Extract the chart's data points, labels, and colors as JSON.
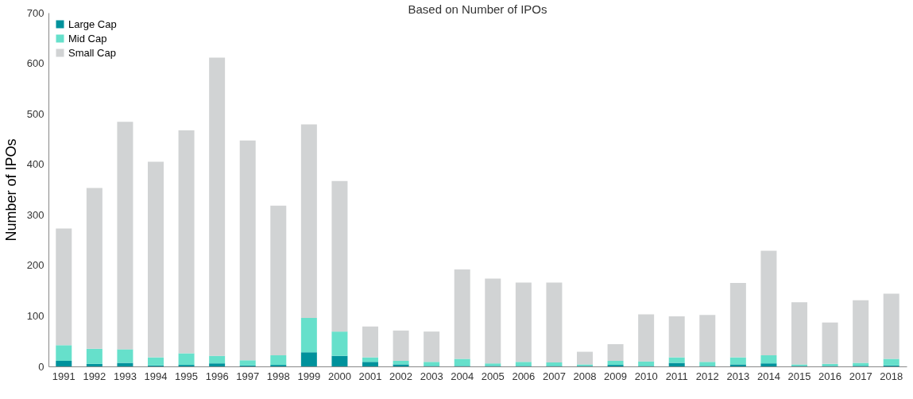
{
  "chart_data": {
    "type": "bar",
    "title": "Based on Number of IPOs",
    "ylabel": "Number of IPOs",
    "stacked": true,
    "legend": "top left",
    "grid": false,
    "categories": [
      "1991",
      "1992",
      "1993",
      "1994",
      "1995",
      "1996",
      "1997",
      "1998",
      "1999",
      "2000",
      "2001",
      "2002",
      "2003",
      "2004",
      "2005",
      "2006",
      "2007",
      "2008",
      "2009",
      "2010",
      "2011",
      "2012",
      "2013",
      "2014",
      "2015",
      "2016",
      "2017",
      "2018"
    ],
    "ylim": [
      0,
      700
    ],
    "yticks": [
      0,
      100,
      200,
      300,
      400,
      500,
      600,
      700
    ],
    "series": [
      {
        "name": "Large Cap",
        "color": "#00929c",
        "values": [
          11,
          5,
          7,
          2,
          3,
          6,
          2,
          3,
          28,
          21,
          9,
          4,
          1,
          1,
          1,
          1,
          1,
          1,
          3,
          1,
          7,
          1,
          4,
          6,
          1,
          1,
          1,
          2
        ]
      },
      {
        "name": "Mid Cap",
        "color": "#66e0cb",
        "values": [
          31,
          30,
          27,
          16,
          23,
          15,
          10,
          19,
          68,
          48,
          9,
          7,
          8,
          14,
          5,
          8,
          7,
          3,
          8,
          9,
          11,
          8,
          14,
          16,
          3,
          4,
          6,
          13
        ]
      },
      {
        "name": "Small Cap",
        "color": "#d1d3d4",
        "values": [
          231,
          318,
          450,
          387,
          441,
          590,
          435,
          296,
          383,
          298,
          61,
          60,
          60,
          177,
          168,
          157,
          158,
          25,
          33,
          93,
          81,
          93,
          147,
          207,
          123,
          82,
          124,
          129
        ]
      }
    ]
  }
}
